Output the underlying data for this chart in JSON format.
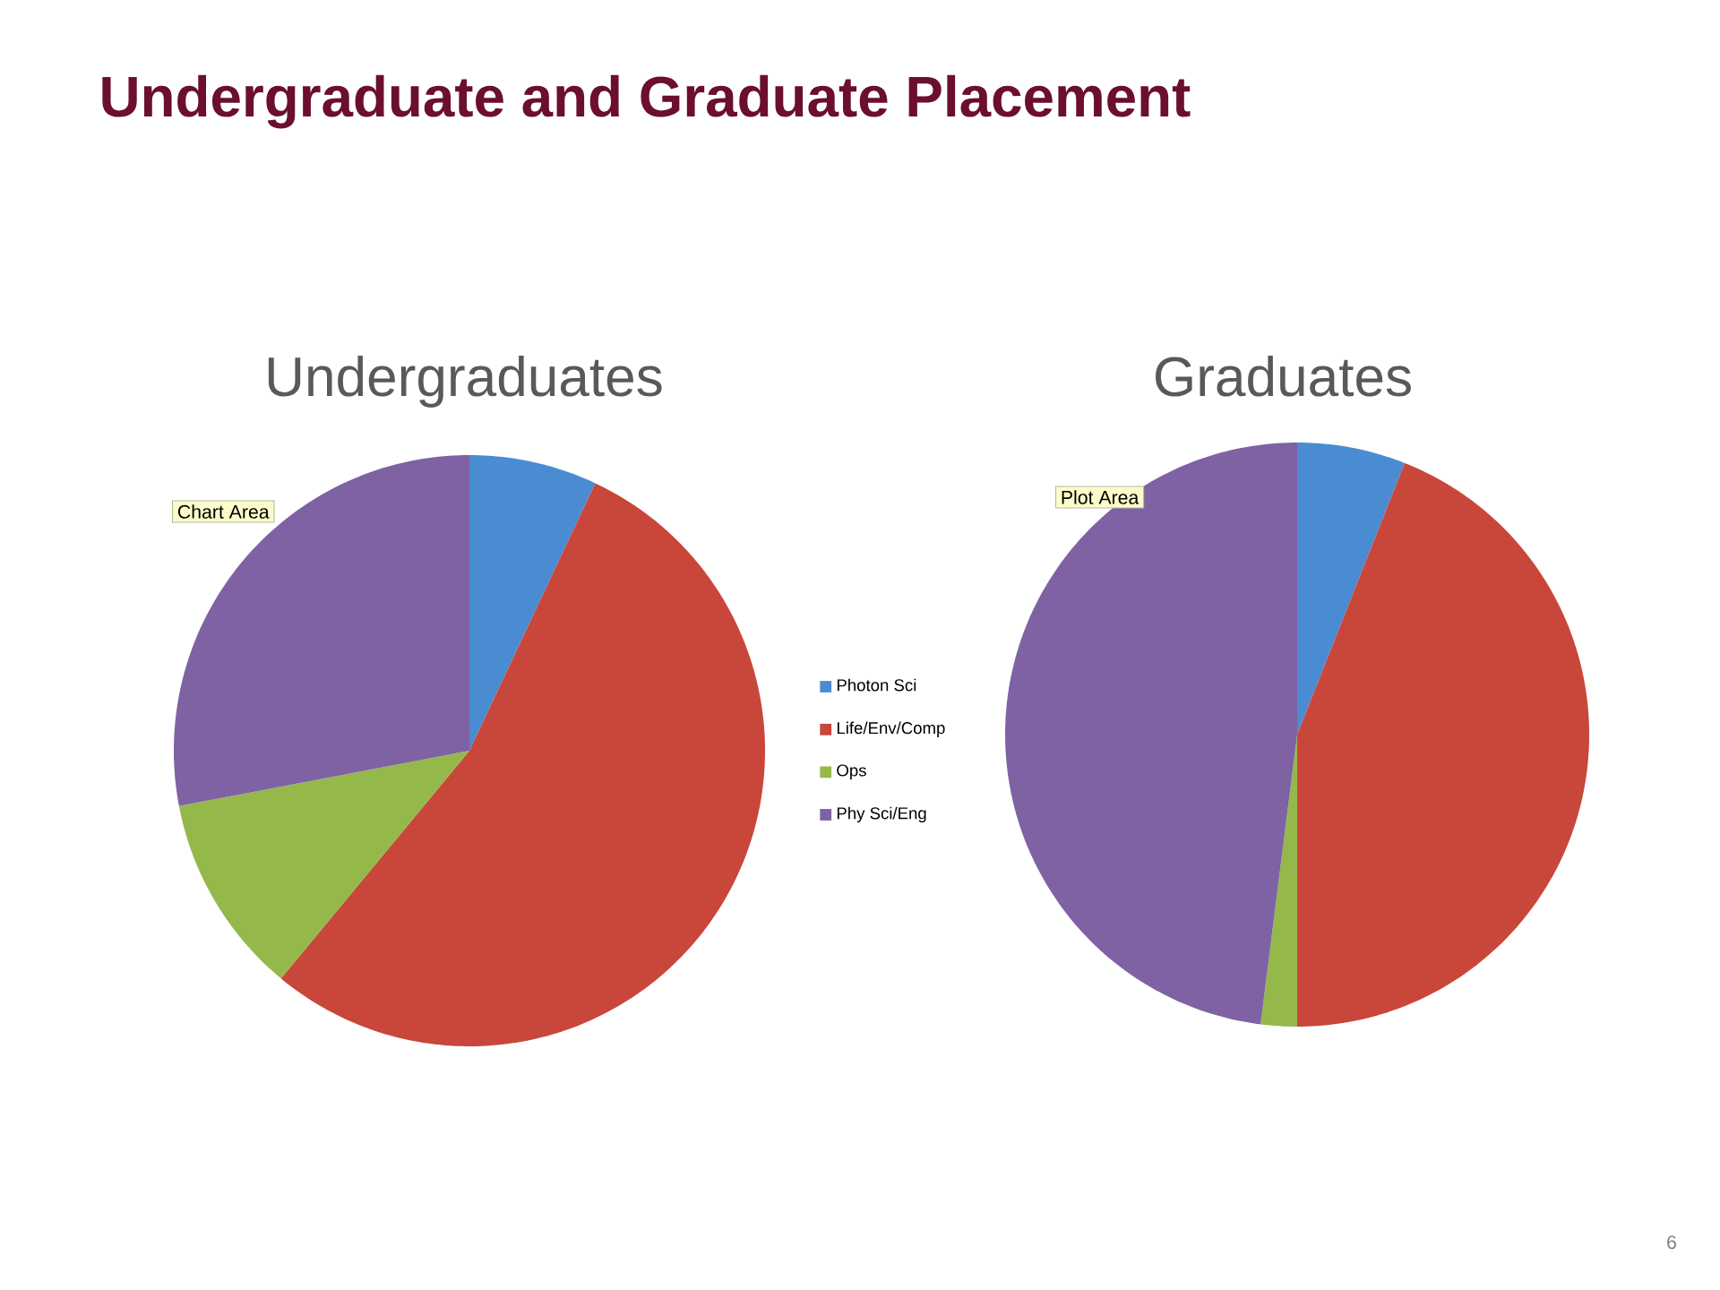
{
  "chart_data": [
    {
      "type": "pie",
      "title": "Undergraduate and Graduate Placement",
      "subtitle": "Undergraduates",
      "categories": [
        "Photon Sci",
        "Life/Env/Comp",
        "Ops",
        "Phy Sci/Eng"
      ],
      "values": [
        7,
        54,
        11,
        28
      ],
      "colors": [
        "#4a8cd2",
        "#c9463b",
        "#95b84b",
        "#7f62a3"
      ],
      "legend": "right",
      "annotations": [
        "Chart Area"
      ]
    },
    {
      "type": "pie",
      "title": "Graduates",
      "categories": [
        null,
        null,
        null,
        null
      ],
      "values": [
        6,
        44,
        2,
        48
      ],
      "colors": [
        "#4a8cd2",
        "#c9463b",
        "#95b84b",
        "#7f62a3"
      ],
      "annotations": [
        "Plot Area",
        "6"
      ]
    }
  ]
}
